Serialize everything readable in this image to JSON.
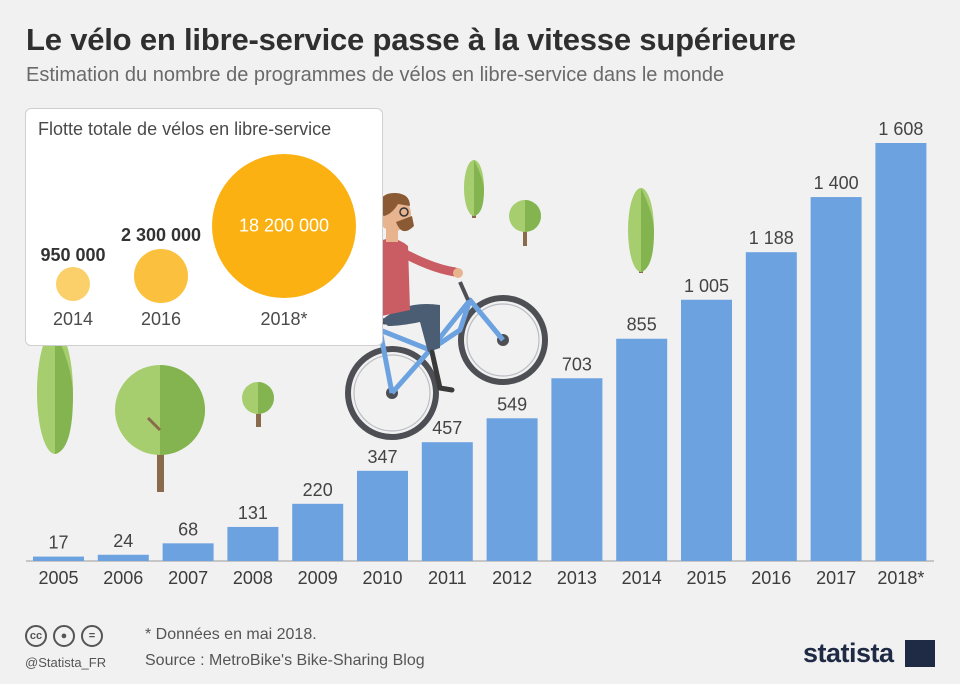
{
  "header": {
    "title": "Le vélo en libre-service passe à la vitesse supérieure",
    "subtitle": "Estimation du nombre de programmes de vélos en libre-service dans le monde"
  },
  "chart_data": [
    {
      "type": "bar",
      "categories": [
        "2005",
        "2006",
        "2007",
        "2008",
        "2009",
        "2010",
        "2011",
        "2012",
        "2013",
        "2014",
        "2015",
        "2016",
        "2017",
        "2018*"
      ],
      "values": [
        17,
        24,
        68,
        131,
        220,
        347,
        457,
        549,
        703,
        855,
        1005,
        1188,
        1400,
        1608
      ],
      "value_labels": [
        "17",
        "24",
        "68",
        "131",
        "220",
        "347",
        "457",
        "549",
        "703",
        "855",
        "1 005",
        "1 188",
        "1 400",
        "1 608"
      ],
      "title": "Le vélo en libre-service passe à la vitesse supérieure",
      "subtitle": "Estimation du nombre de programmes de vélos en libre-service dans le monde",
      "ylim": [
        0,
        1608
      ],
      "grid": false,
      "color": "#6da2e0"
    },
    {
      "type": "bubble",
      "title": "Flotte totale de vélos en libre-service",
      "categories": [
        "2014",
        "2016",
        "2018*"
      ],
      "values": [
        950000,
        2300000,
        18200000
      ],
      "value_labels": [
        "950 000",
        "2 300 000",
        "18 200 000"
      ],
      "colors": [
        "#fbd06a",
        "#fbc03e",
        "#fbb112"
      ]
    }
  ],
  "footer": {
    "handle": "@Statista_FR",
    "note": "* Données en mai 2018.",
    "source": "Source : MetroBike's Bike-Sharing Blog",
    "brand": "statista",
    "cc_icons": [
      "cc-icon",
      "attribution-icon",
      "no-derivatives-icon"
    ]
  },
  "colors": {
    "background": "#f1f1f1",
    "bar": "#6da2e0",
    "tree_light": "#a6cd6e",
    "tree_dark": "#84b450",
    "trunk": "#8a6a4c",
    "bubble_gold": "#fbb112"
  },
  "illustration": {
    "subject": "cyclist-riding-wheelie",
    "trees": 6
  }
}
